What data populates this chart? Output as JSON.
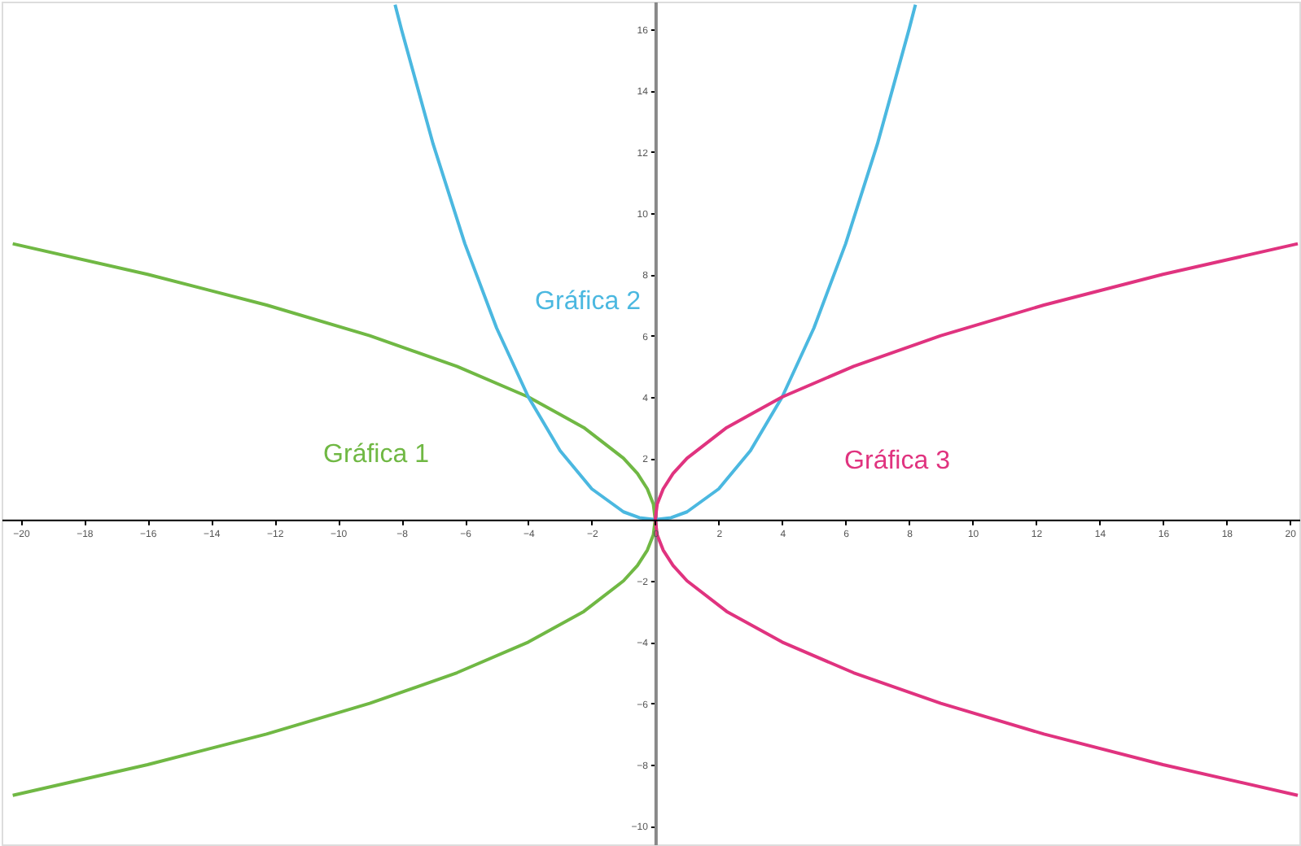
{
  "chart_data": {
    "type": "line",
    "xlim": [
      -20.6,
      20.3
    ],
    "ylim": [
      -10.6,
      16.9
    ],
    "xticks": [
      -20,
      -18,
      -16,
      -14,
      -12,
      -10,
      -8,
      -6,
      -4,
      -2,
      0,
      2,
      4,
      6,
      8,
      10,
      12,
      14,
      16,
      18,
      20
    ],
    "yticks": [
      -10,
      -8,
      -6,
      -4,
      -2,
      2,
      4,
      6,
      8,
      10,
      12,
      14,
      16
    ],
    "grid": false,
    "legend": false,
    "marker": "none",
    "line_style": "solid",
    "series": [
      {
        "name": "Gráfica 1",
        "color": "#70b844",
        "x": [
          -20.25,
          -16,
          -12.25,
          -9,
          -6.25,
          -4,
          -2.25,
          -1,
          -0.56,
          -0.25,
          -0.06,
          0,
          -0.06,
          -0.25,
          -0.56,
          -1,
          -2.25,
          -4,
          -6.25,
          -9,
          -12.25,
          -16,
          -20.25
        ],
        "values": [
          -9,
          -8,
          -7,
          -6,
          -5,
          -4,
          -3,
          -2,
          -1.5,
          -1,
          -0.5,
          0,
          0.5,
          1,
          1.5,
          2,
          3,
          4,
          5,
          6,
          7,
          8,
          9
        ]
      },
      {
        "name": "Gráfica 2",
        "color": "#4bb8e0",
        "x": [
          -8.2,
          -8,
          -7,
          -6,
          -5,
          -4,
          -3,
          -2,
          -1,
          -0.5,
          0,
          0.5,
          1,
          2,
          3,
          4,
          5,
          6,
          7,
          8,
          8.2
        ],
        "values": [
          16.8,
          16,
          12.25,
          9,
          6.25,
          4,
          2.25,
          1,
          0.25,
          0.06,
          0,
          0.06,
          0.25,
          1,
          2.25,
          4,
          6.25,
          9,
          12.25,
          16,
          16.8
        ]
      },
      {
        "name": "Gráfica 3",
        "color": "#e0337f",
        "x": [
          20.25,
          16,
          12.25,
          9,
          6.25,
          4,
          2.25,
          1,
          0.56,
          0.25,
          0.06,
          0,
          0.06,
          0.25,
          0.56,
          1,
          2.25,
          4,
          6.25,
          9,
          12.25,
          16,
          20.25
        ],
        "values": [
          -9,
          -8,
          -7,
          -6,
          -5,
          -4,
          -3,
          -2,
          -1.5,
          -1,
          -0.5,
          0,
          0.5,
          1,
          1.5,
          2,
          3,
          4,
          5,
          6,
          7,
          8,
          9
        ]
      }
    ]
  }
}
